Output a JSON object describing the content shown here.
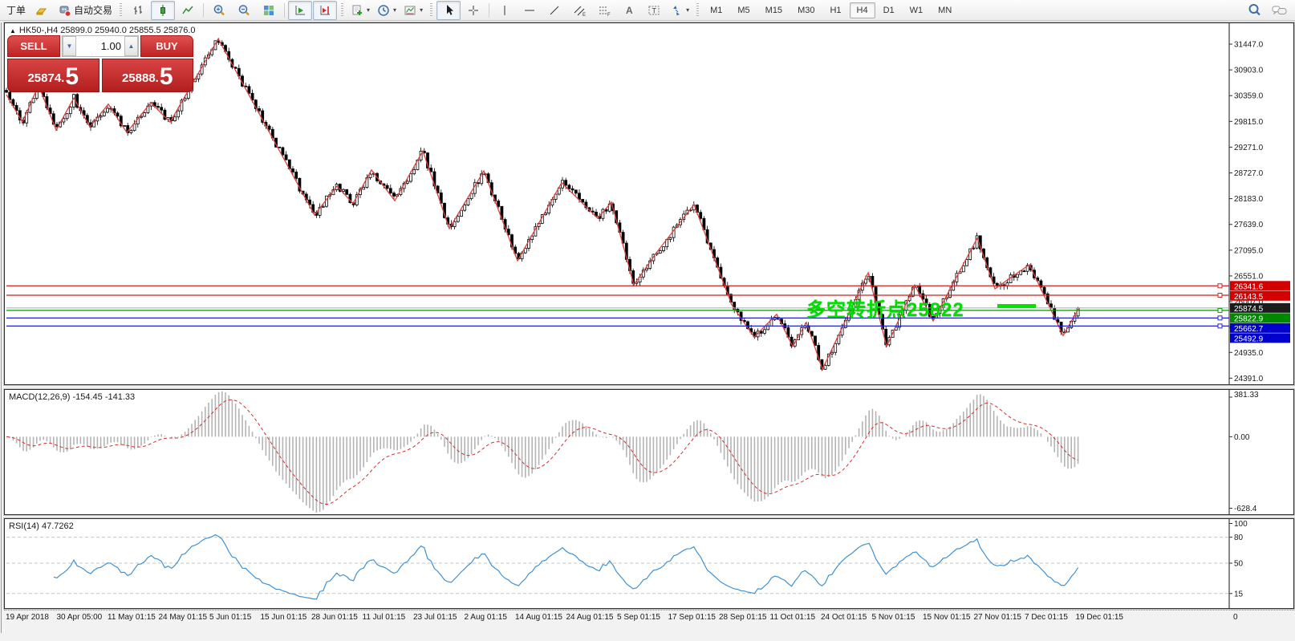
{
  "toolbar": {
    "order_label": "丁单",
    "autotrade_label": "自动交易",
    "timeframes": [
      "M1",
      "M5",
      "M15",
      "M30",
      "H1",
      "H4",
      "D1",
      "W1",
      "MN"
    ],
    "active_timeframe": "H4"
  },
  "trade_panel": {
    "sell_label": "SELL",
    "buy_label": "BUY",
    "volume": "1.00",
    "sell_price": "25874.",
    "sell_price_big": "5",
    "buy_price": "25888.",
    "buy_price_big": "5"
  },
  "chart": {
    "title": "HK50-,H4 25899.0 25940.0 25855.5 25876.0",
    "annotation": {
      "text": "多空转折点25822",
      "color": "#00dd00"
    },
    "highlight_color": "#00e400",
    "price_top": 31871,
    "price_bottom": 24279,
    "price_axis_ticks": [
      31447.0,
      30903.0,
      30359.0,
      29815.0,
      29271.0,
      28727.0,
      28183.0,
      27639.0,
      27095.0,
      26551.0,
      26007.0,
      25463.0,
      24935.0,
      24391.0
    ],
    "hlines": [
      {
        "price": 26341.6,
        "label": "26341.6",
        "box": "#d40000",
        "line": "#cc2222",
        "handle": true
      },
      {
        "price": 26143.5,
        "label": "26143.5",
        "box": "#d40000",
        "line": "#cc2222",
        "handle": true
      },
      {
        "price": 25874.5,
        "label": "25874.5",
        "box": "#1c1c1c",
        "line": "#a8a8a8",
        "handle": false,
        "type": "bid"
      },
      {
        "price": 25822.9,
        "label": "25822.9",
        "box": "#008800",
        "line": "#009900",
        "handle": true
      },
      {
        "price": 25662.7,
        "label": "25662.7",
        "box": "#0000cc",
        "line": "#2222cc",
        "handle": true
      },
      {
        "price": 25492.9,
        "label": "25492.9",
        "box": "#0000cc",
        "line": "#2222cc",
        "handle": true
      }
    ],
    "last_close": 25876.0,
    "zigzag": [
      [
        8,
        30380
      ],
      [
        28,
        29800
      ],
      [
        48,
        30580
      ],
      [
        70,
        29630
      ],
      [
        92,
        30310
      ],
      [
        112,
        29700
      ],
      [
        135,
        30180
      ],
      [
        158,
        29580
      ],
      [
        188,
        30210
      ],
      [
        212,
        29800
      ],
      [
        272,
        31560
      ],
      [
        392,
        27840
      ],
      [
        420,
        28450
      ],
      [
        440,
        28080
      ],
      [
        463,
        28790
      ],
      [
        492,
        28140
      ],
      [
        527,
        29190
      ],
      [
        560,
        27550
      ],
      [
        603,
        28770
      ],
      [
        645,
        26870
      ],
      [
        700,
        28520
      ],
      [
        745,
        27770
      ],
      [
        762,
        28110
      ],
      [
        790,
        26360
      ],
      [
        818,
        27040
      ],
      [
        865,
        28060
      ],
      [
        912,
        25940
      ],
      [
        940,
        25260
      ],
      [
        968,
        25740
      ],
      [
        988,
        25060
      ],
      [
        1005,
        25570
      ],
      [
        1025,
        24580
      ],
      [
        1082,
        26620
      ],
      [
        1105,
        25060
      ],
      [
        1140,
        26360
      ],
      [
        1163,
        25600
      ],
      [
        1218,
        27350
      ],
      [
        1240,
        26280
      ],
      [
        1283,
        26790
      ],
      [
        1325,
        25290
      ],
      [
        1345,
        25880
      ]
    ]
  },
  "macd": {
    "label": "MACD(12,26,9) -154.45 -141.33",
    "axis_max": "381.33",
    "axis_zero": "0.00",
    "axis_min": "-628.4"
  },
  "rsi": {
    "label": "RSI(14) 47.7262",
    "axis_labels": [
      "100",
      "80",
      "50",
      "15"
    ],
    "levels": [
      80,
      50,
      15
    ],
    "bottom_label": "0"
  },
  "time_axis": {
    "labels": [
      "19 Apr 2018",
      "30 Apr 05:00",
      "11 May 01:15",
      "24 May 01:15",
      "5 Jun 01:15",
      "15 Jun 01:15",
      "28 Jun 01:15",
      "11 Jul 01:15",
      "23 Jul 01:15",
      "2 Aug 01:15",
      "14 Aug 01:15",
      "24 Aug 01:15",
      "5 Sep 01:15",
      "17 Sep 01:15",
      "28 Sep 01:15",
      "11 Oct 01:15",
      "24 Oct 01:15",
      "5 Nov 01:15",
      "15 Nov 01:15",
      "27 Nov 01:15",
      "7 Dec 01:15",
      "19 Dec 01:15"
    ]
  }
}
